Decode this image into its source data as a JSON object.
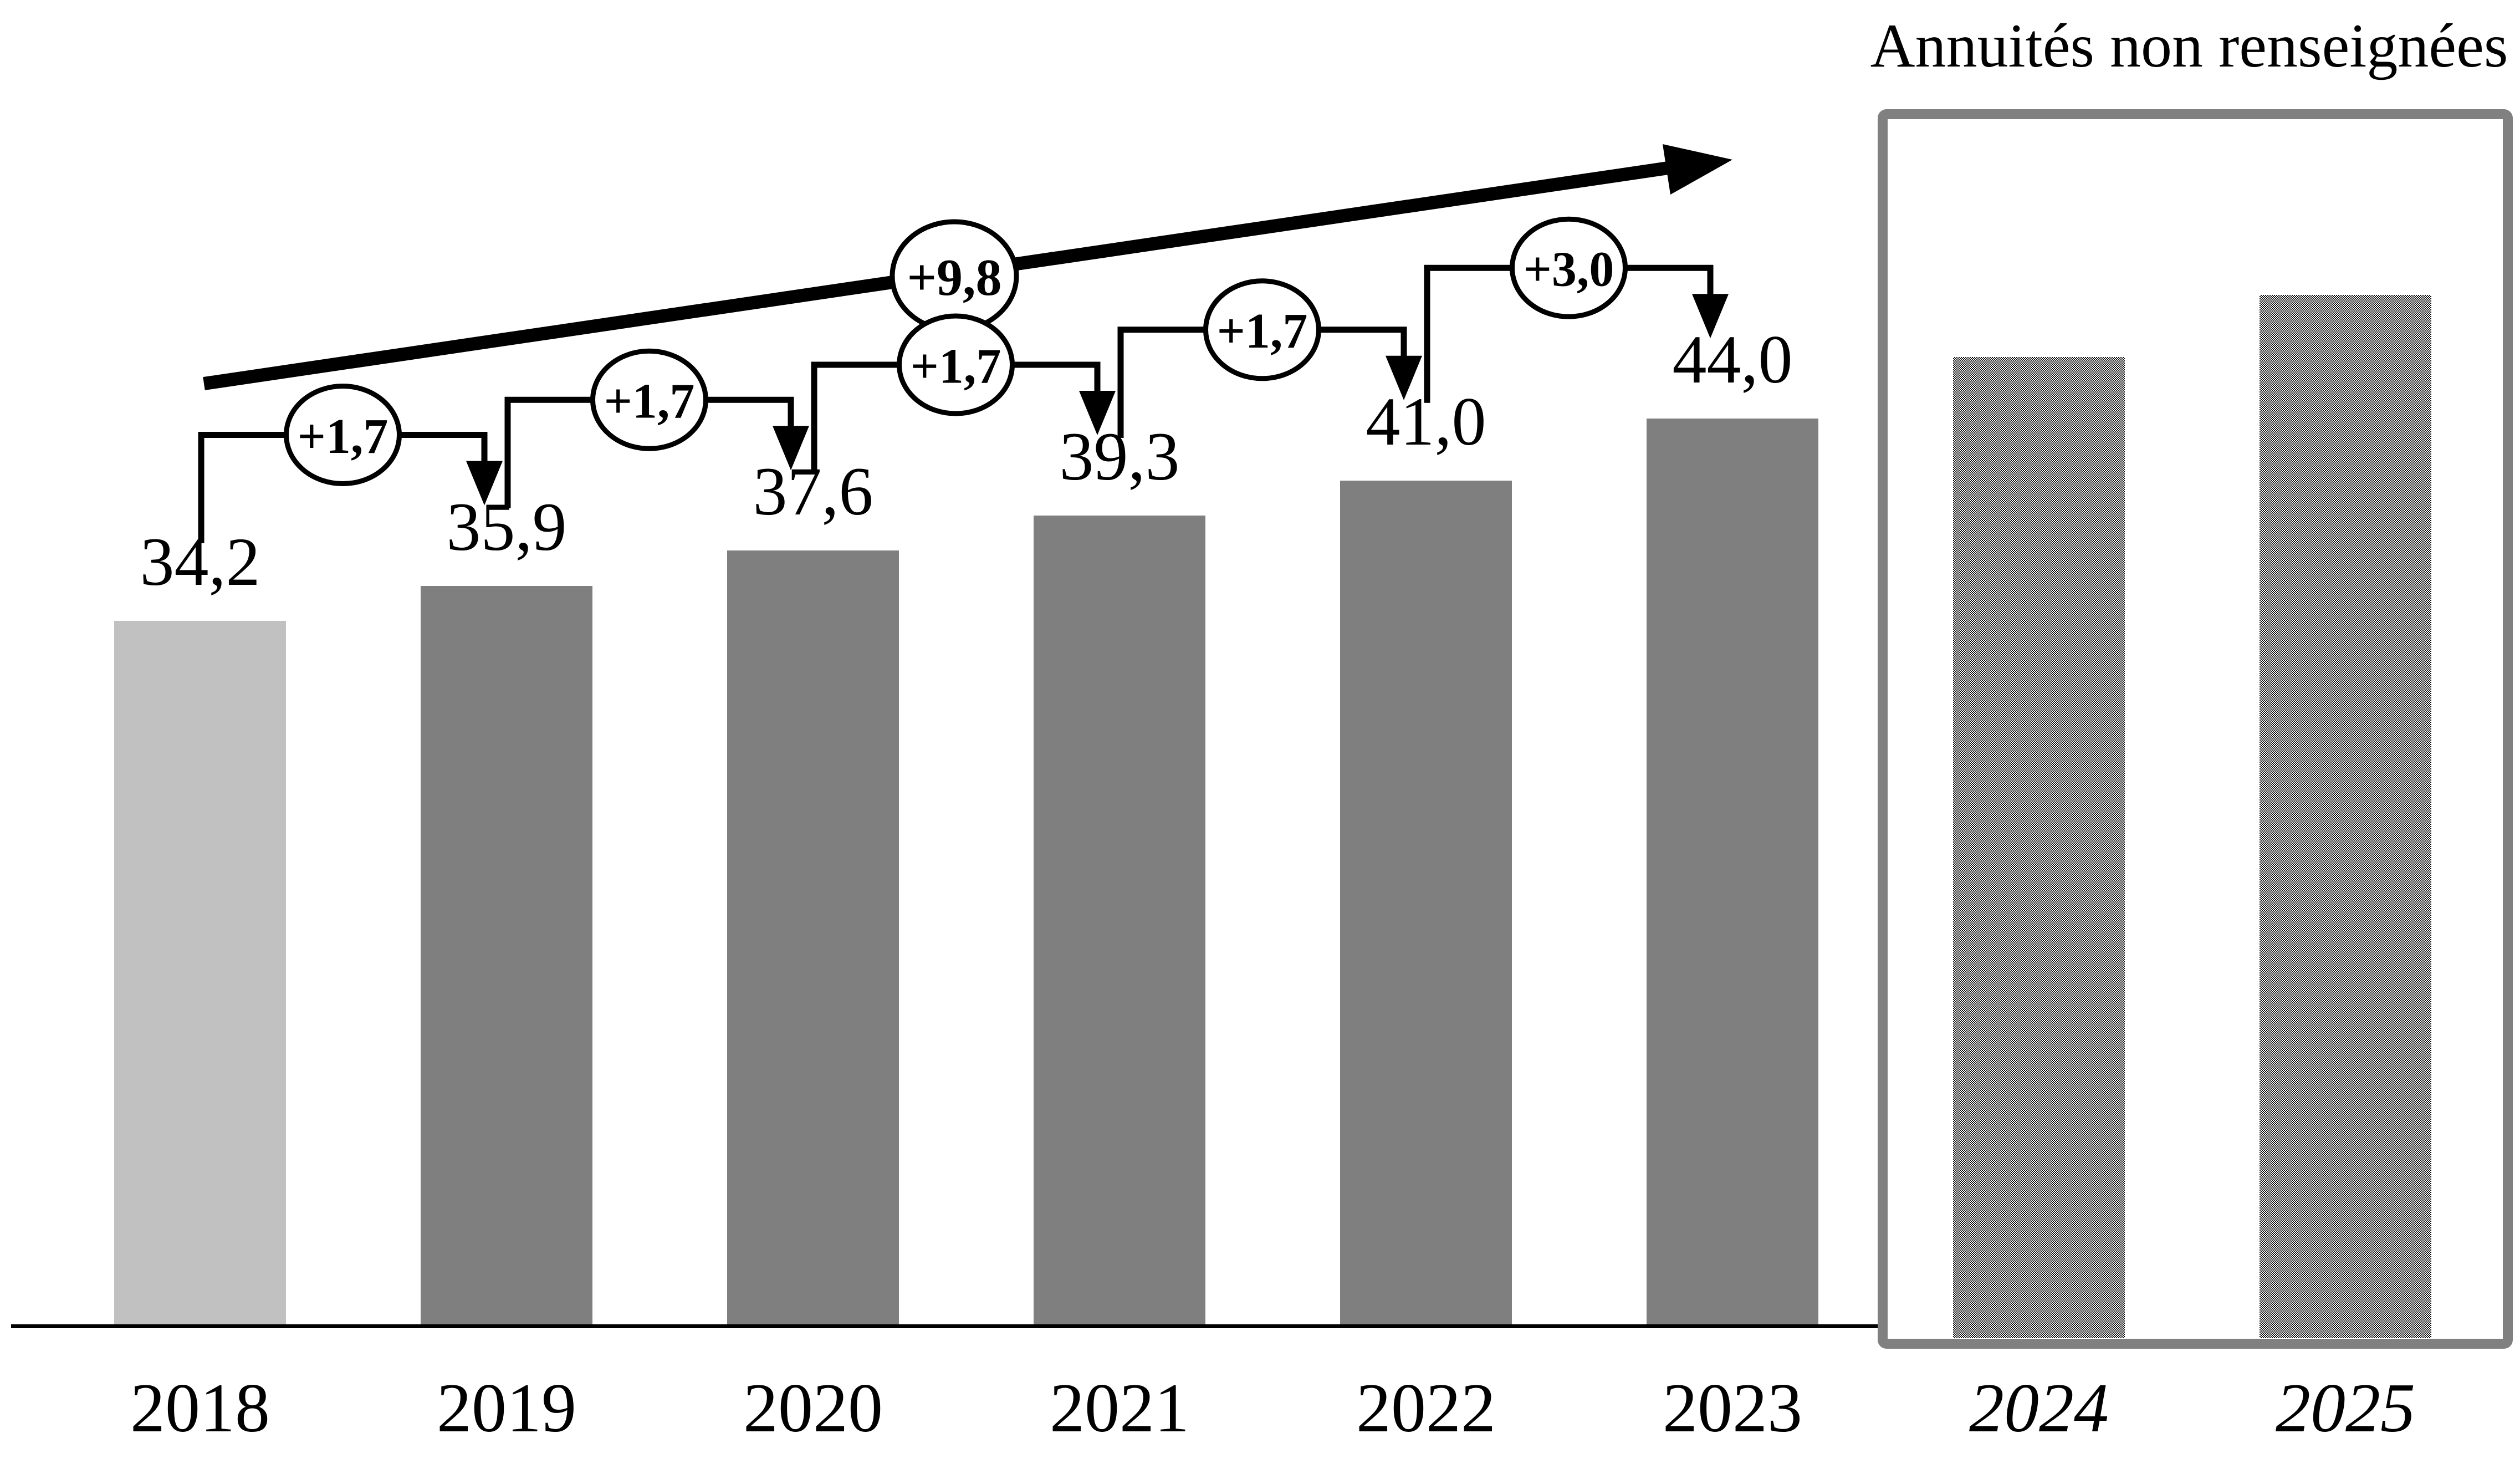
{
  "annotation_box": {
    "label": "Annuités non renseignées",
    "covers": [
      "2024",
      "2025"
    ],
    "border_color": "#808080"
  },
  "chart_data": {
    "type": "bar",
    "categories": [
      "2018",
      "2019",
      "2020",
      "2021",
      "2022",
      "2023",
      "2024",
      "2025"
    ],
    "values": [
      34.2,
      35.9,
      37.6,
      39.3,
      41.0,
      44.0,
      47.0,
      50.0
    ],
    "data_labels": [
      "34,2",
      "35,9",
      "37,6",
      "39,3",
      "41,0",
      "44,0",
      "",
      ""
    ],
    "values_note": "2024 and 2025 bars carry no data labels; their values are estimated from bar heights",
    "x_tick_styles": {
      "italic": [
        "2024",
        "2025"
      ]
    },
    "bar_colors": {
      "2018": "#c1c1c1",
      "2019": "#7f7f7f",
      "2020": "#7f7f7f",
      "2021": "#7f7f7f",
      "2022": "#7f7f7f",
      "2023": "#7f7f7f",
      "2024": "pattern",
      "2025": "pattern"
    },
    "pattern_description": "black-and-white checkerboard halftone fill",
    "step_annotations": [
      {
        "from": "2018",
        "to": "2019",
        "label": "+1,7"
      },
      {
        "from": "2019",
        "to": "2020",
        "label": "+1,7"
      },
      {
        "from": "2020",
        "to": "2021",
        "label": "+1,7"
      },
      {
        "from": "2021",
        "to": "2022",
        "label": "+1,7"
      },
      {
        "from": "2022",
        "to": "2023",
        "label": "+3,0"
      }
    ],
    "trend_annotation": {
      "label": "+9,8",
      "from": "2018",
      "to": "2023"
    },
    "ylim": [
      0,
      52
    ],
    "grid": false,
    "legend": false,
    "axis_color": "#000000"
  }
}
